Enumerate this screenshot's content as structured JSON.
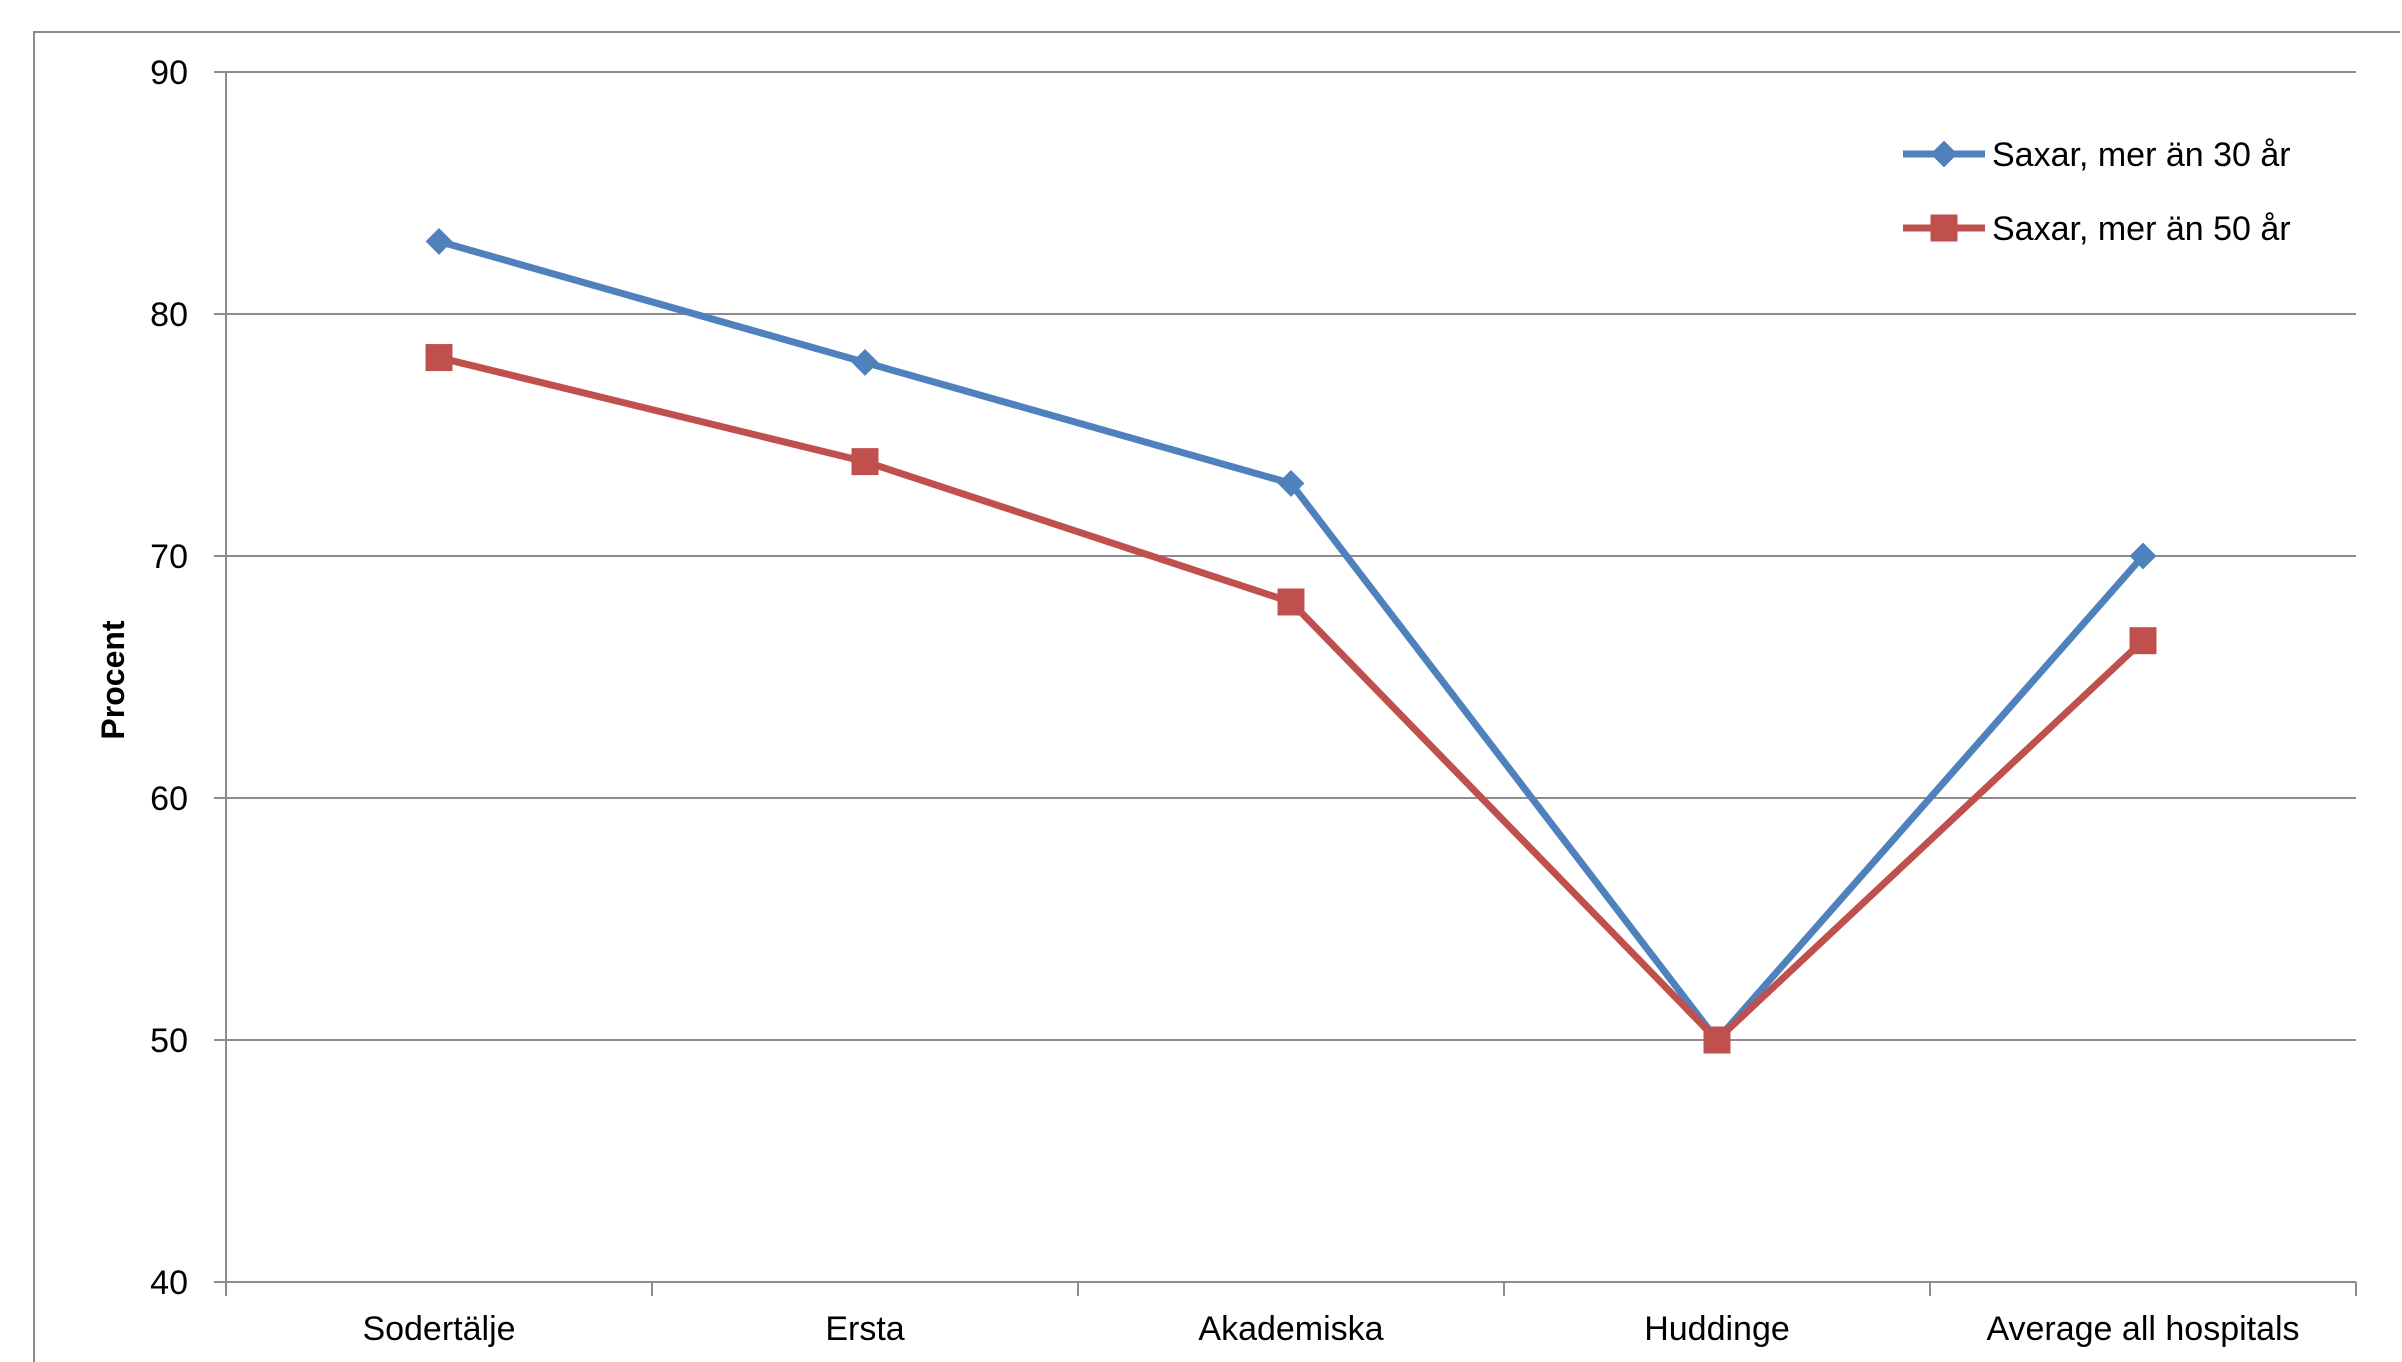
{
  "chart_data": {
    "type": "line",
    "title": "",
    "xlabel": "",
    "ylabel": "Procent",
    "ylim": [
      40,
      90
    ],
    "yticks": [
      40,
      50,
      60,
      70,
      80,
      90
    ],
    "categories": [
      "Sodertälje",
      "Ersta",
      "Akademiska",
      "Huddinge",
      "Average all hospitals"
    ],
    "grid": "horizontal",
    "legend_position": "top-right",
    "series": [
      {
        "name": "Saxar, mer än 30 år",
        "color": "#4f81bd",
        "marker": "diamond",
        "values": [
          83,
          78,
          73,
          50,
          70
        ]
      },
      {
        "name": "Saxar, mer än 50 år",
        "color": "#c0504d",
        "marker": "square",
        "values": [
          78.2,
          73.9,
          68.1,
          50,
          66.5
        ]
      }
    ]
  }
}
